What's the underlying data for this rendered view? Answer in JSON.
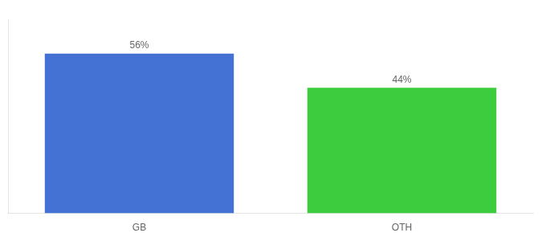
{
  "chart_data": {
    "type": "bar",
    "categories": [
      "GB",
      "OTH"
    ],
    "values": [
      56,
      44
    ],
    "value_labels": [
      "56%",
      "44%"
    ],
    "colors": [
      "#4472d4",
      "#3dcc3d"
    ],
    "ylim": [
      0,
      68
    ],
    "grid": false,
    "data_labels": true,
    "tick_labels": "x"
  }
}
